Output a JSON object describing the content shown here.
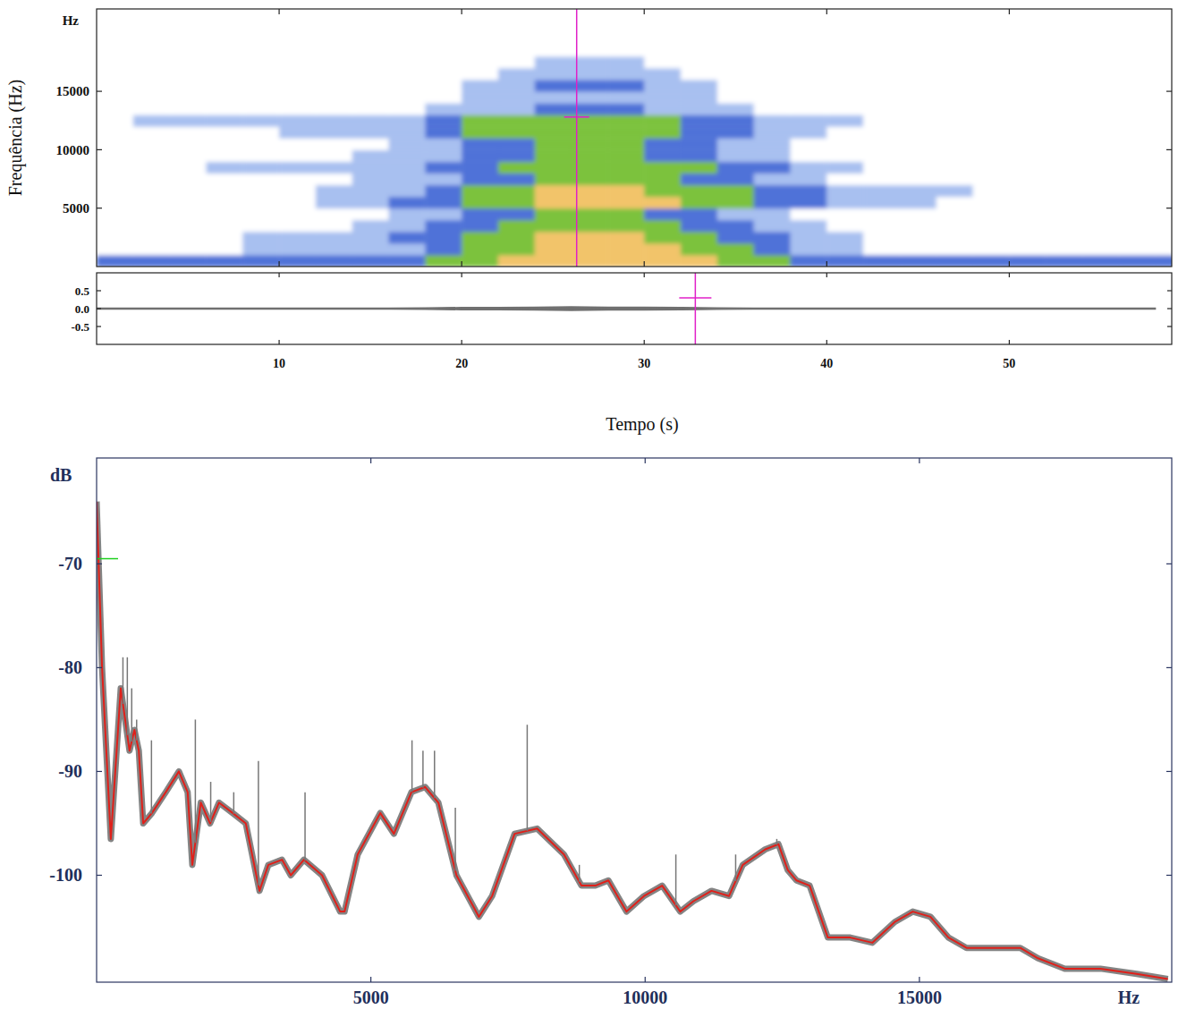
{
  "chart_data": [
    {
      "type": "heatmap",
      "ylabel": "Frequência (Hz)",
      "yunit": "Hz",
      "xlim": [
        0,
        58.9
      ],
      "ylim": [
        0,
        22050
      ],
      "xticks": [
        10,
        20,
        30,
        40,
        50
      ],
      "yticks": [
        5000,
        10000,
        15000
      ],
      "tick_labels": "y",
      "grid": false,
      "colors": [
        "#ffffff",
        "#a8c0f0",
        "#4f72d8",
        "#7cc23c",
        "#f2c46a"
      ],
      "x_edges": [
        0,
        2,
        4,
        6,
        8,
        10,
        12,
        14,
        16,
        18,
        20,
        22,
        24,
        26,
        28,
        30,
        32,
        34,
        36,
        38,
        40,
        42,
        44,
        46,
        48,
        50,
        52,
        54,
        56,
        58,
        60
      ],
      "y_edges": [
        0,
        1000,
        2000,
        3000,
        4000,
        5000,
        6000,
        7000,
        8000,
        9000,
        10000,
        11000,
        12000,
        13000,
        14000,
        15000,
        16000,
        17000,
        18000,
        19000
      ],
      "cells": [
        [
          2,
          2,
          2,
          2,
          2,
          2,
          2,
          2,
          2,
          3,
          3,
          4,
          4,
          4,
          4,
          4,
          4,
          3,
          3,
          2,
          2,
          2,
          2,
          2,
          2,
          2,
          2,
          2,
          2,
          2
        ],
        [
          0,
          0,
          0,
          0,
          1,
          1,
          1,
          1,
          1,
          2,
          3,
          3,
          4,
          4,
          4,
          4,
          3,
          3,
          2,
          1,
          1,
          0,
          0,
          0,
          0,
          0,
          0,
          0,
          0,
          0
        ],
        [
          0,
          0,
          0,
          0,
          1,
          1,
          1,
          1,
          2,
          2,
          3,
          3,
          4,
          4,
          4,
          3,
          3,
          2,
          2,
          1,
          1,
          0,
          0,
          0,
          0,
          0,
          0,
          0,
          0,
          0
        ],
        [
          0,
          0,
          0,
          0,
          0,
          0,
          0,
          1,
          1,
          2,
          2,
          3,
          3,
          3,
          3,
          3,
          2,
          2,
          1,
          1,
          0,
          0,
          0,
          0,
          0,
          0,
          0,
          0,
          0,
          0
        ],
        [
          0,
          0,
          0,
          0,
          0,
          0,
          0,
          0,
          1,
          1,
          2,
          2,
          3,
          3,
          3,
          2,
          2,
          1,
          1,
          0,
          0,
          0,
          0,
          0,
          0,
          0,
          0,
          0,
          0,
          0
        ],
        [
          0,
          0,
          0,
          0,
          0,
          0,
          1,
          1,
          2,
          2,
          3,
          3,
          4,
          4,
          4,
          4,
          3,
          3,
          2,
          2,
          1,
          1,
          1,
          0,
          0,
          0,
          0,
          0,
          0,
          0
        ],
        [
          0,
          0,
          0,
          0,
          0,
          0,
          1,
          1,
          1,
          2,
          3,
          3,
          4,
          4,
          4,
          3,
          3,
          3,
          2,
          2,
          1,
          1,
          1,
          1,
          0,
          0,
          0,
          0,
          0,
          0
        ],
        [
          0,
          0,
          0,
          0,
          0,
          0,
          0,
          1,
          1,
          1,
          2,
          2,
          3,
          3,
          3,
          3,
          2,
          2,
          1,
          1,
          0,
          0,
          0,
          0,
          0,
          0,
          0,
          0,
          0,
          0
        ],
        [
          0,
          0,
          0,
          1,
          1,
          1,
          1,
          1,
          1,
          2,
          2,
          3,
          3,
          3,
          3,
          3,
          3,
          2,
          2,
          1,
          1,
          0,
          0,
          0,
          0,
          0,
          0,
          0,
          0,
          0
        ],
        [
          0,
          0,
          0,
          0,
          0,
          0,
          0,
          1,
          1,
          1,
          2,
          2,
          3,
          3,
          3,
          2,
          2,
          1,
          1,
          0,
          0,
          0,
          0,
          0,
          0,
          0,
          0,
          0,
          0,
          0
        ],
        [
          0,
          0,
          0,
          0,
          0,
          0,
          0,
          0,
          1,
          1,
          2,
          2,
          3,
          3,
          3,
          2,
          2,
          1,
          1,
          0,
          0,
          0,
          0,
          0,
          0,
          0,
          0,
          0,
          0,
          0
        ],
        [
          0,
          0,
          0,
          0,
          0,
          1,
          1,
          1,
          1,
          2,
          3,
          3,
          3,
          3,
          3,
          3,
          2,
          2,
          1,
          1,
          0,
          0,
          0,
          0,
          0,
          0,
          0,
          0,
          0,
          0
        ],
        [
          0,
          1,
          1,
          1,
          1,
          1,
          1,
          1,
          1,
          2,
          3,
          3,
          3,
          3,
          3,
          3,
          2,
          2,
          1,
          1,
          1,
          0,
          0,
          0,
          0,
          0,
          0,
          0,
          0,
          0
        ],
        [
          0,
          0,
          0,
          0,
          0,
          0,
          0,
          0,
          0,
          1,
          1,
          1,
          2,
          2,
          2,
          1,
          1,
          1,
          0,
          0,
          0,
          0,
          0,
          0,
          0,
          0,
          0,
          0,
          0,
          0
        ],
        [
          0,
          0,
          0,
          0,
          0,
          0,
          0,
          0,
          0,
          0,
          1,
          1,
          1,
          1,
          1,
          1,
          1,
          0,
          0,
          0,
          0,
          0,
          0,
          0,
          0,
          0,
          0,
          0,
          0,
          0
        ],
        [
          0,
          0,
          0,
          0,
          0,
          0,
          0,
          0,
          0,
          0,
          1,
          1,
          2,
          2,
          2,
          1,
          1,
          0,
          0,
          0,
          0,
          0,
          0,
          0,
          0,
          0,
          0,
          0,
          0,
          0
        ],
        [
          0,
          0,
          0,
          0,
          0,
          0,
          0,
          0,
          0,
          0,
          0,
          1,
          1,
          1,
          1,
          1,
          0,
          0,
          0,
          0,
          0,
          0,
          0,
          0,
          0,
          0,
          0,
          0,
          0,
          0
        ],
        [
          0,
          0,
          0,
          0,
          0,
          0,
          0,
          0,
          0,
          0,
          0,
          0,
          1,
          1,
          1,
          0,
          0,
          0,
          0,
          0,
          0,
          0,
          0,
          0,
          0,
          0,
          0,
          0,
          0,
          0
        ],
        [
          0,
          0,
          0,
          0,
          0,
          0,
          0,
          0,
          0,
          0,
          0,
          0,
          0,
          0,
          0,
          0,
          0,
          0,
          0,
          0,
          0,
          0,
          0,
          0,
          0,
          0,
          0,
          0,
          0,
          0
        ]
      ],
      "cursor": {
        "x": 26.3,
        "y": 12800,
        "color": "#e020c8"
      }
    },
    {
      "type": "area",
      "xlabel": "Tempo (s)",
      "xlim": [
        0,
        58.9
      ],
      "ylim": [
        -1,
        1
      ],
      "xticks": [
        10,
        20,
        30,
        40,
        50
      ],
      "yticks": [
        0.5,
        {
          "value": 0,
          "label": "0.0"
        },
        -0.5
      ],
      "grid": false,
      "color": "#707070",
      "x": [
        0,
        2,
        4,
        6,
        8,
        10,
        12,
        14,
        16,
        18,
        20,
        22,
        24,
        26,
        28,
        30,
        32,
        34,
        36,
        38,
        40,
        42,
        44,
        46,
        48,
        50,
        52,
        54,
        56,
        58
      ],
      "values": [
        0.01,
        0.01,
        0.01,
        0.01,
        0.01,
        0.01,
        0.01,
        0.01,
        0.01,
        0.02,
        0.03,
        0.03,
        0.04,
        0.05,
        0.04,
        0.04,
        0.03,
        0.02,
        0.015,
        0.01,
        0.01,
        0.01,
        0.01,
        0.01,
        0.01,
        0.01,
        0.01,
        0.01,
        0.01,
        0.01
      ],
      "cursor": {
        "x": 32.8,
        "y": 0.3,
        "color": "#e020c8"
      }
    },
    {
      "type": "line",
      "xunit": "Hz",
      "yunit": "dB",
      "xlim": [
        0,
        19600
      ],
      "ylim": [
        -110.3,
        -59.8
      ],
      "xticks": [
        5000,
        10000,
        15000
      ],
      "yticks": [
        -70,
        -80,
        -90,
        -100
      ],
      "grid": false,
      "series": [
        {
          "type": "line",
          "color": "#e0201a",
          "x": [
            0,
            100,
            260,
            440,
            600,
            690,
            770,
            850,
            1010,
            1260,
            1500,
            1660,
            1745,
            1900,
            2070,
            2230,
            2480,
            2720,
            2970,
            3130,
            3380,
            3540,
            3780,
            4110,
            4440,
            4520,
            4760,
            5170,
            5420,
            5740,
            5990,
            6230,
            6560,
            6970,
            7210,
            7620,
            8030,
            8520,
            8840,
            9090,
            9330,
            9660,
            9980,
            10310,
            10640,
            10880,
            11210,
            11530,
            11780,
            12190,
            12430,
            12600,
            12760,
            13000,
            13330,
            13740,
            14140,
            14550,
            14880,
            15200,
            15530,
            15860,
            16350,
            16840,
            17160,
            17650,
            18300,
            18960,
            19530
          ],
          "values": [
            -64,
            -80,
            -96.5,
            -82,
            -88,
            -86,
            -88,
            -95,
            -94,
            -92,
            -90,
            -92,
            -99,
            -93,
            -95,
            -93,
            -94,
            -95,
            -101.5,
            -99,
            -98.5,
            -100,
            -98.5,
            -100,
            -103.5,
            -103.5,
            -98,
            -94,
            -96,
            -92,
            -91.5,
            -93,
            -100,
            -104,
            -102,
            -96,
            -95.5,
            -98,
            -101,
            -101,
            -100.5,
            -103.5,
            -102,
            -101,
            -103.5,
            -102.5,
            -101.5,
            -102,
            -99,
            -97.5,
            -97,
            -99.5,
            -100.5,
            -101,
            -106,
            -106,
            -106.5,
            -104.5,
            -103.5,
            -104,
            -106,
            -107,
            -107,
            -107,
            -108,
            -109,
            -109,
            -109.5,
            -110
          ]
        },
        {
          "type": "spike",
          "color": "#777777",
          "x": [
            480,
            560,
            640,
            730,
            1000,
            1800,
            2080,
            2500,
            2950,
            3800,
            5750,
            5950,
            6160,
            6540,
            7850,
            8800,
            10560,
            11650,
            12400
          ],
          "values": [
            -79,
            -79,
            -82,
            -85,
            -87,
            -85,
            -91,
            -92,
            -89,
            -92,
            -87,
            -88,
            -88,
            -93.5,
            -85.5,
            -99,
            -98,
            -98,
            -96.5
          ]
        }
      ],
      "cursor": {
        "y": -69.5,
        "color": "#20d020"
      }
    }
  ]
}
